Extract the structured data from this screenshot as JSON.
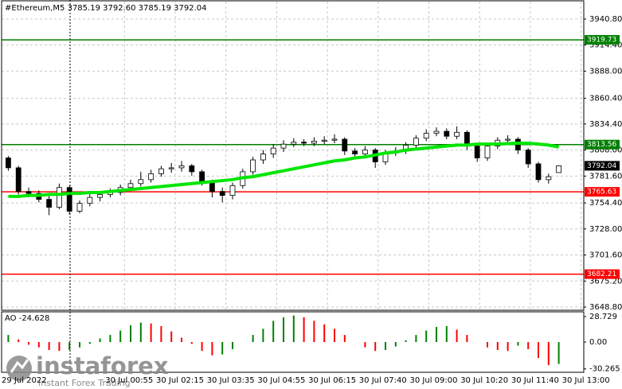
{
  "chart_data": {
    "type": "candlestick",
    "title": "#Ethereum,M5  3785.19 3792.60 3785.19 3792.04",
    "x_labels": [
      "29 Jul 2022",
      "30 Jul 00:55",
      "30 Jul 02:15",
      "30 Jul 03:35",
      "30 Jul 04:55",
      "30 Jul 06:15",
      "30 Jul 07:40",
      "30 Jul 09:00",
      "30 Jul 10:20",
      "30 Jul 11:40",
      "30 Jul 13:00"
    ],
    "open": [
      3800,
      3790,
      3766,
      3764,
      3758,
      3750,
      3770,
      3746,
      3754,
      3760,
      3763,
      3765,
      3770,
      3774,
      3778,
      3784,
      3789,
      3790,
      3792,
      3786,
      3776,
      3766,
      3762,
      3772,
      3786,
      3798,
      3804,
      3810,
      3814,
      3816,
      3815,
      3817,
      3818,
      3819,
      3807,
      3804,
      3808,
      3796,
      3805,
      3807,
      3813,
      3820,
      3825,
      3827,
      3822,
      3826,
      3812,
      3800,
      3812,
      3818,
      3819,
      3808,
      3794,
      3778,
      3785.19
    ],
    "high": [
      3802,
      3792,
      3770,
      3767,
      3762,
      3774,
      3772,
      3757,
      3764,
      3766,
      3769,
      3773,
      3778,
      3786,
      3788,
      3792,
      3795,
      3797,
      3794,
      3788,
      3778,
      3770,
      3775,
      3789,
      3801,
      3808,
      3814,
      3818,
      3820,
      3819,
      3821,
      3822,
      3824,
      3821,
      3810,
      3812,
      3810,
      3808,
      3811,
      3816,
      3823,
      3829,
      3831,
      3830,
      3832,
      3828,
      3815,
      3815,
      3821,
      3823,
      3821,
      3810,
      3796,
      3784,
      3792.6
    ],
    "low": [
      3787,
      3763,
      3760,
      3755,
      3742,
      3748,
      3743,
      3744,
      3751,
      3756,
      3760,
      3762,
      3767,
      3771,
      3775,
      3781,
      3785,
      3786,
      3782,
      3772,
      3760,
      3755,
      3758,
      3769,
      3783,
      3794,
      3800,
      3806,
      3811,
      3812,
      3812,
      3814,
      3815,
      3803,
      3800,
      3801,
      3790,
      3793,
      3802,
      3804,
      3810,
      3817,
      3822,
      3819,
      3819,
      3808,
      3796,
      3797,
      3809,
      3814,
      3804,
      3790,
      3775,
      3774,
      3785.19
    ],
    "close": [
      3790,
      3766,
      3764,
      3758,
      3750,
      3770,
      3746,
      3754,
      3760,
      3763,
      3765,
      3770,
      3774,
      3778,
      3784,
      3789,
      3790,
      3792,
      3786,
      3776,
      3766,
      3762,
      3772,
      3786,
      3798,
      3804,
      3810,
      3814,
      3816,
      3815,
      3817,
      3818,
      3819,
      3807,
      3804,
      3808,
      3796,
      3805,
      3807,
      3813,
      3820,
      3825,
      3827,
      3822,
      3826,
      3812,
      3800,
      3812,
      3818,
      3819,
      3808,
      3794,
      3778,
      3781,
      3792.04
    ],
    "ma": {
      "color": "#00e600",
      "values": [
        3761,
        3761,
        3762,
        3762,
        3763,
        3763,
        3764,
        3764,
        3765,
        3765,
        3766,
        3767,
        3768,
        3769,
        3770,
        3771,
        3772,
        3773,
        3774,
        3775,
        3776,
        3777,
        3778,
        3780,
        3781,
        3783,
        3785,
        3787,
        3789,
        3791,
        3793,
        3795,
        3797,
        3798,
        3800,
        3801,
        3803,
        3805,
        3806,
        3808,
        3809,
        3810,
        3811,
        3812,
        3813,
        3813,
        3814,
        3814,
        3814,
        3814.5,
        3815,
        3815,
        3814,
        3813,
        3811
      ]
    },
    "ylim": [
      3645.6,
      3959.3
    ],
    "yticks": [
      {
        "value": 3940.8,
        "label": "3940.80"
      },
      {
        "value": 3914.4,
        "label": "3914.40"
      },
      {
        "value": 3888,
        "label": "3888.00"
      },
      {
        "value": 3860.4,
        "label": "3860.40"
      },
      {
        "value": 3834.4,
        "label": "3834.40"
      },
      {
        "value": 3808,
        "label": "3808.00"
      },
      {
        "value": 3781.6,
        "label": "3781.60"
      },
      {
        "value": 3754.4,
        "label": "3754.40"
      },
      {
        "value": 3728,
        "label": "3728.00"
      },
      {
        "value": 3701.6,
        "label": "3701.60"
      },
      {
        "value": 3675.2,
        "label": "3675.20"
      },
      {
        "value": 3648.8,
        "label": "3648.80"
      }
    ],
    "grid": true,
    "levels": [
      {
        "value": 3919.73,
        "color": "#008000"
      },
      {
        "value": 3813.56,
        "color": "#008000"
      },
      {
        "value": 3765.63,
        "color": "#ff0000"
      },
      {
        "value": 3682.21,
        "color": "#ff0000"
      }
    ],
    "last_price": 3792.04,
    "indicator_label": "AO -24.628",
    "ao": {
      "up_color": "#008000",
      "down_color": "#ff0000",
      "values": [
        8,
        3,
        -3,
        -6,
        -9,
        -10,
        -9,
        -6,
        -2,
        4,
        8,
        13,
        19,
        22,
        21,
        18,
        12,
        5,
        -2,
        -10,
        -15,
        -14,
        -8,
        0,
        8,
        15,
        24,
        28,
        30,
        28,
        24,
        20,
        15,
        8,
        0,
        -6,
        -10,
        -9,
        -5,
        2,
        8,
        13,
        17,
        18,
        14,
        8,
        0,
        -6,
        -9,
        -10,
        -4,
        -8,
        -18,
        -26,
        -24.628
      ],
      "ylim": [
        -33.2,
        34.1
      ],
      "yticks": [
        28.729,
        {
          "value": 0,
          "label": "0.00"
        },
        -30.265
      ]
    }
  },
  "watermark": {
    "brand": "instaforex",
    "tagline": "Instant Forex Trading"
  }
}
